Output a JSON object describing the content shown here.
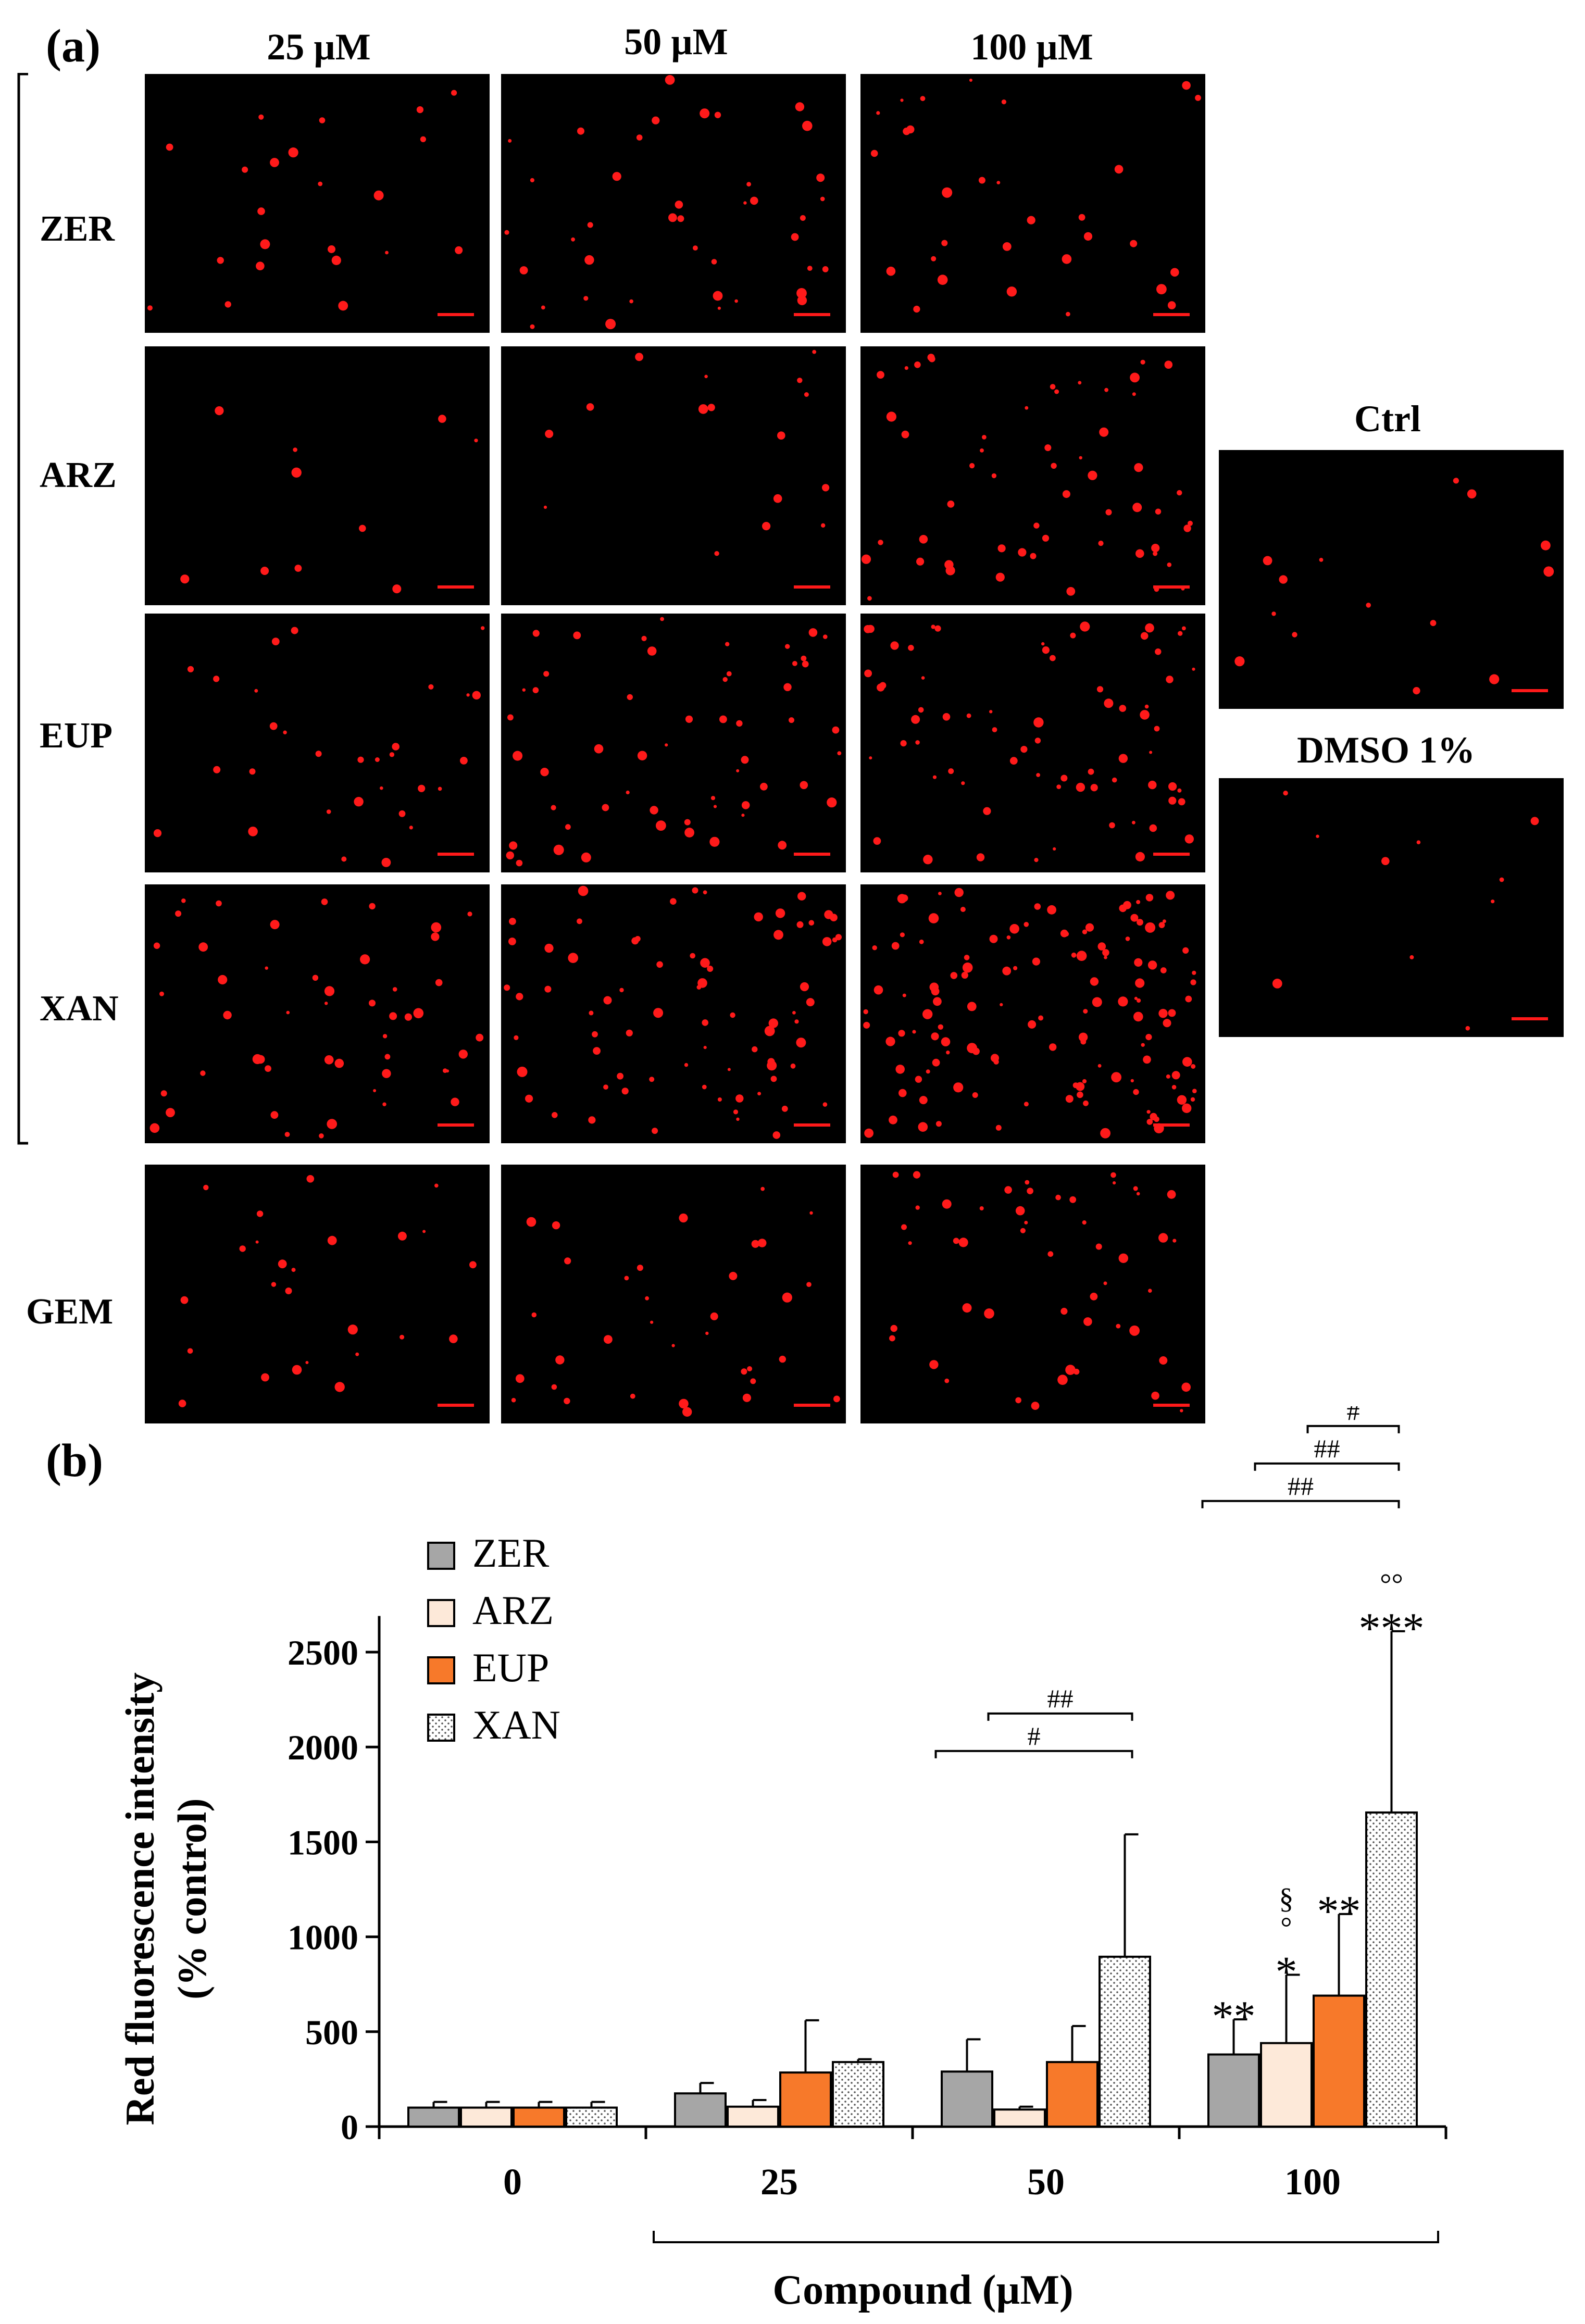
{
  "panel_a": {
    "letter": "(a)",
    "columns": [
      "25 µM",
      "50 µM",
      "100 µM"
    ],
    "rows": [
      "ZER",
      "ARZ",
      "EUP",
      "XAN",
      "GEM"
    ],
    "controls": [
      "Ctrl",
      "DMSO 1%"
    ],
    "dot_color": "#ff1a1a"
  },
  "panel_b": {
    "letter": "(b)"
  },
  "chart_data": {
    "type": "bar",
    "categories": [
      "0",
      "25",
      "50",
      "100"
    ],
    "xlabel": "Compound (µM)",
    "ylabel": "Red fluorescence intensity (% control)",
    "ylim": [
      0,
      2800
    ],
    "yticks": [
      0,
      500,
      1000,
      1500,
      2000,
      2500
    ],
    "legend_position": "top-left",
    "series": [
      {
        "name": "ZER",
        "color": "#a6a6a6",
        "pattern": "solid",
        "values": [
          100,
          175,
          290,
          380
        ],
        "errors": [
          30,
          55,
          170,
          185
        ]
      },
      {
        "name": "ARZ",
        "color": "#fde9d9",
        "pattern": "solid",
        "values": [
          100,
          105,
          90,
          440
        ],
        "errors": [
          30,
          35,
          15,
          360
        ]
      },
      {
        "name": "EUP",
        "color": "#f7792a",
        "pattern": "solid",
        "values": [
          100,
          285,
          340,
          690
        ],
        "errors": [
          30,
          275,
          190,
          430
        ]
      },
      {
        "name": "XAN",
        "color": "#ffffff",
        "pattern": "dots",
        "values": [
          100,
          340,
          895,
          1655
        ],
        "errors": [
          30,
          15,
          645,
          955
        ]
      }
    ],
    "annotations": [
      {
        "category": "100",
        "series": "ZER",
        "text": "**"
      },
      {
        "category": "100",
        "series": "ARZ",
        "text": "*"
      },
      {
        "category": "100",
        "series": "ARZ",
        "text": "°"
      },
      {
        "category": "100",
        "series": "ARZ",
        "text": "§"
      },
      {
        "category": "100",
        "series": "EUP",
        "text": "**"
      },
      {
        "category": "100",
        "series": "XAN",
        "text": "***"
      },
      {
        "category": "100",
        "series": "XAN",
        "text": "°°"
      }
    ],
    "brackets": [
      {
        "category": "50",
        "from": "ZER",
        "to": "XAN",
        "text": "#"
      },
      {
        "category": "50",
        "from": "ARZ",
        "to": "XAN",
        "text": "##"
      },
      {
        "category": "100",
        "from": "ZER",
        "to": "XAN",
        "text": "##"
      },
      {
        "category": "100",
        "from": "ARZ",
        "to": "XAN",
        "text": "##"
      },
      {
        "category": "100",
        "from": "EUP",
        "to": "XAN",
        "text": "#"
      }
    ]
  }
}
